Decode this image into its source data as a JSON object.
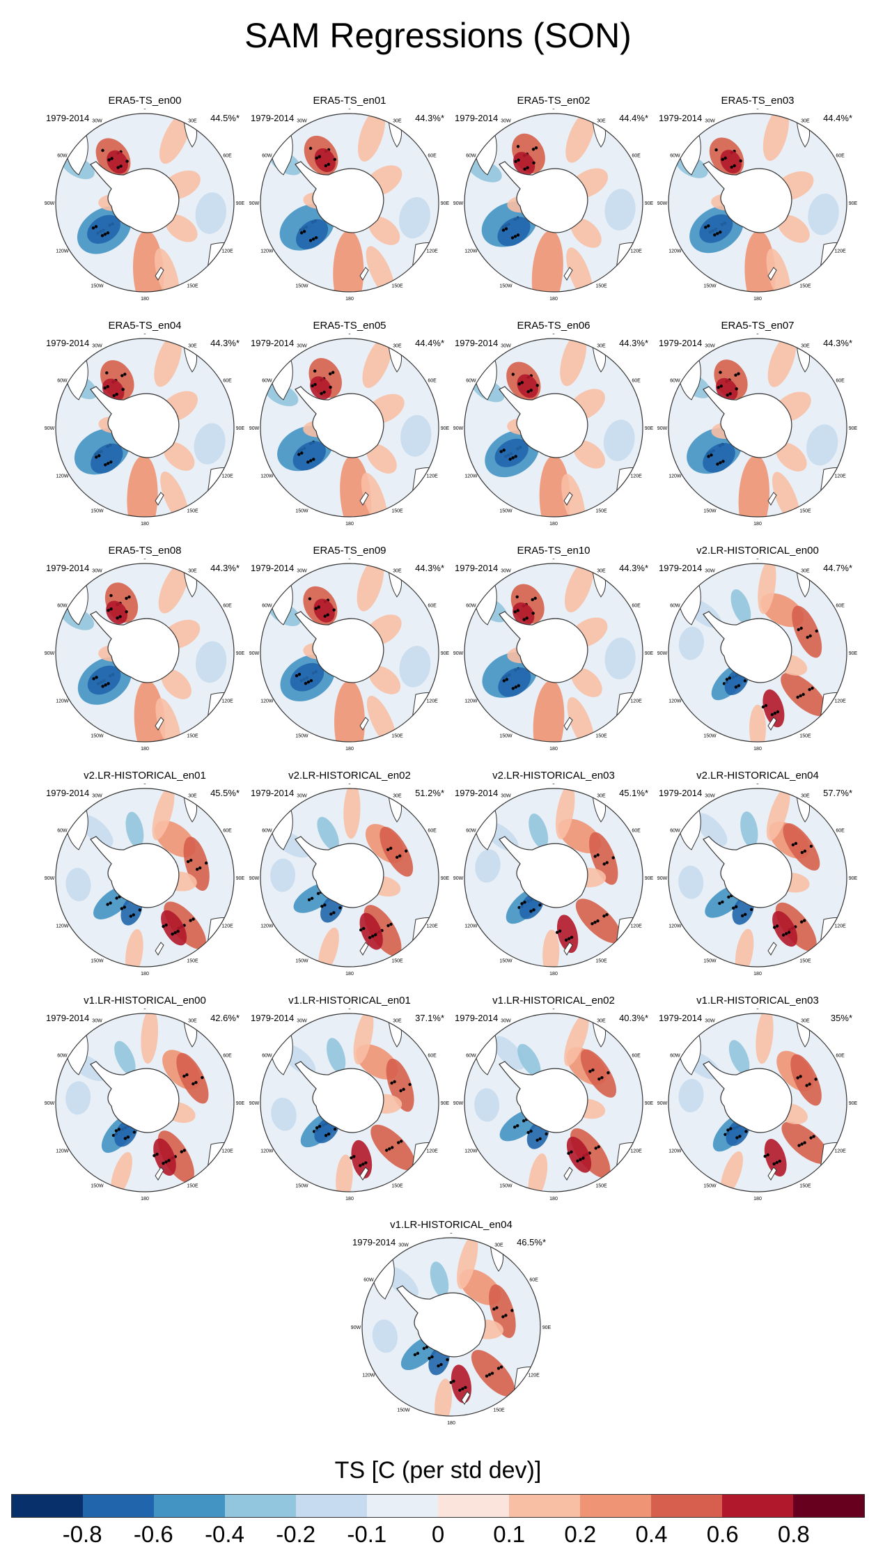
{
  "title": "SAM Regressions (SON)",
  "period": "1979-2014",
  "lon_labels": [
    "0",
    "30E",
    "60E",
    "90E",
    "120E",
    "150E",
    "180",
    "150W",
    "120W",
    "90W",
    "60W",
    "30W"
  ],
  "panels": [
    {
      "name": "ERA5-TS_en00",
      "pct": "44.5%*",
      "style": "era5"
    },
    {
      "name": "ERA5-TS_en01",
      "pct": "44.3%*",
      "style": "era5"
    },
    {
      "name": "ERA5-TS_en02",
      "pct": "44.4%*",
      "style": "era5"
    },
    {
      "name": "ERA5-TS_en03",
      "pct": "44.4%*",
      "style": "era5"
    },
    {
      "name": "ERA5-TS_en04",
      "pct": "44.3%*",
      "style": "era5"
    },
    {
      "name": "ERA5-TS_en05",
      "pct": "44.4%*",
      "style": "era5"
    },
    {
      "name": "ERA5-TS_en06",
      "pct": "44.3%*",
      "style": "era5"
    },
    {
      "name": "ERA5-TS_en07",
      "pct": "44.3%*",
      "style": "era5"
    },
    {
      "name": "ERA5-TS_en08",
      "pct": "44.3%*",
      "style": "era5"
    },
    {
      "name": "ERA5-TS_en09",
      "pct": "44.3%*",
      "style": "era5"
    },
    {
      "name": "ERA5-TS_en10",
      "pct": "44.3%*",
      "style": "era5"
    },
    {
      "name": "v2.LR-HISTORICAL_en00",
      "pct": "44.7%*",
      "style": "model"
    },
    {
      "name": "v2.LR-HISTORICAL_en01",
      "pct": "45.5%*",
      "style": "model"
    },
    {
      "name": "v2.LR-HISTORICAL_en02",
      "pct": "51.2%*",
      "style": "model"
    },
    {
      "name": "v2.LR-HISTORICAL_en03",
      "pct": "45.1%*",
      "style": "model"
    },
    {
      "name": "v2.LR-HISTORICAL_en04",
      "pct": "57.7%*",
      "style": "model"
    },
    {
      "name": "v1.LR-HISTORICAL_en00",
      "pct": "42.6%*",
      "style": "model"
    },
    {
      "name": "v1.LR-HISTORICAL_en01",
      "pct": "37.1%*",
      "style": "model"
    },
    {
      "name": "v1.LR-HISTORICAL_en02",
      "pct": "40.3%*",
      "style": "model"
    },
    {
      "name": "v1.LR-HISTORICAL_en03",
      "pct": "35%*",
      "style": "model"
    },
    {
      "name": "v1.LR-HISTORICAL_en04",
      "pct": "46.5%*",
      "style": "model"
    }
  ],
  "colorbar": {
    "title": "TS [C (per std dev)]",
    "colors": [
      "#08306b",
      "#2166ac",
      "#4393c3",
      "#92c5de",
      "#c6dbef",
      "#e8eff6",
      "#fbe4dc",
      "#f8bfa5",
      "#ef9474",
      "#d6604d",
      "#b2182b",
      "#67001f"
    ],
    "labels": [
      "-0.8",
      "-0.6",
      "-0.4",
      "-0.2",
      "-0.1",
      "0",
      "0.1",
      "0.2",
      "0.4",
      "0.6",
      "0.8"
    ]
  }
}
